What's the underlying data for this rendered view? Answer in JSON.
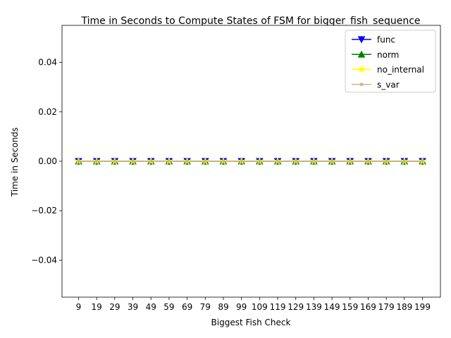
{
  "chart_data": {
    "type": "line",
    "title": "Time in Seconds to Compute States of FSM for bigger_fish_sequence",
    "xlabel": "Biggest Fish Check",
    "ylabel": "Time in Seconds",
    "categories": [
      "9",
      "19",
      "29",
      "39",
      "49",
      "59",
      "69",
      "79",
      "89",
      "99",
      "109",
      "119",
      "129",
      "139",
      "149",
      "159",
      "169",
      "179",
      "189",
      "199"
    ],
    "ylim": [
      -0.055,
      0.055
    ],
    "yticks": [
      -0.04,
      -0.02,
      0.0,
      0.02,
      0.04
    ],
    "ytick_labels": [
      "−0.04",
      "−0.02",
      "0.00",
      "0.02",
      "0.04"
    ],
    "grid": false,
    "legend_position": "top-right",
    "series": [
      {
        "name": "func",
        "color": "#0000ff",
        "marker": "triangle-down",
        "values": [
          0,
          0,
          0,
          0,
          0,
          0,
          0,
          0,
          0,
          0,
          0,
          0,
          0,
          0,
          0,
          0,
          0,
          0,
          0,
          0
        ]
      },
      {
        "name": "norm",
        "color": "#008000",
        "marker": "triangle-up",
        "values": [
          0,
          0,
          0,
          0,
          0,
          0,
          0,
          0,
          0,
          0,
          0,
          0,
          0,
          0,
          0,
          0,
          0,
          0,
          0,
          0
        ]
      },
      {
        "name": "no_internal",
        "color": "#ffff00",
        "marker": "star",
        "values": [
          0,
          0,
          0,
          0,
          0,
          0,
          0,
          0,
          0,
          0,
          0,
          0,
          0,
          0,
          0,
          0,
          0,
          0,
          0,
          0
        ]
      },
      {
        "name": "s_var",
        "color": "#d2b48c",
        "marker": "point",
        "values": [
          0,
          0,
          0,
          0,
          0,
          0,
          0,
          0,
          0,
          0,
          0,
          0,
          0,
          0,
          0,
          0,
          0,
          0,
          0,
          0
        ]
      }
    ]
  }
}
